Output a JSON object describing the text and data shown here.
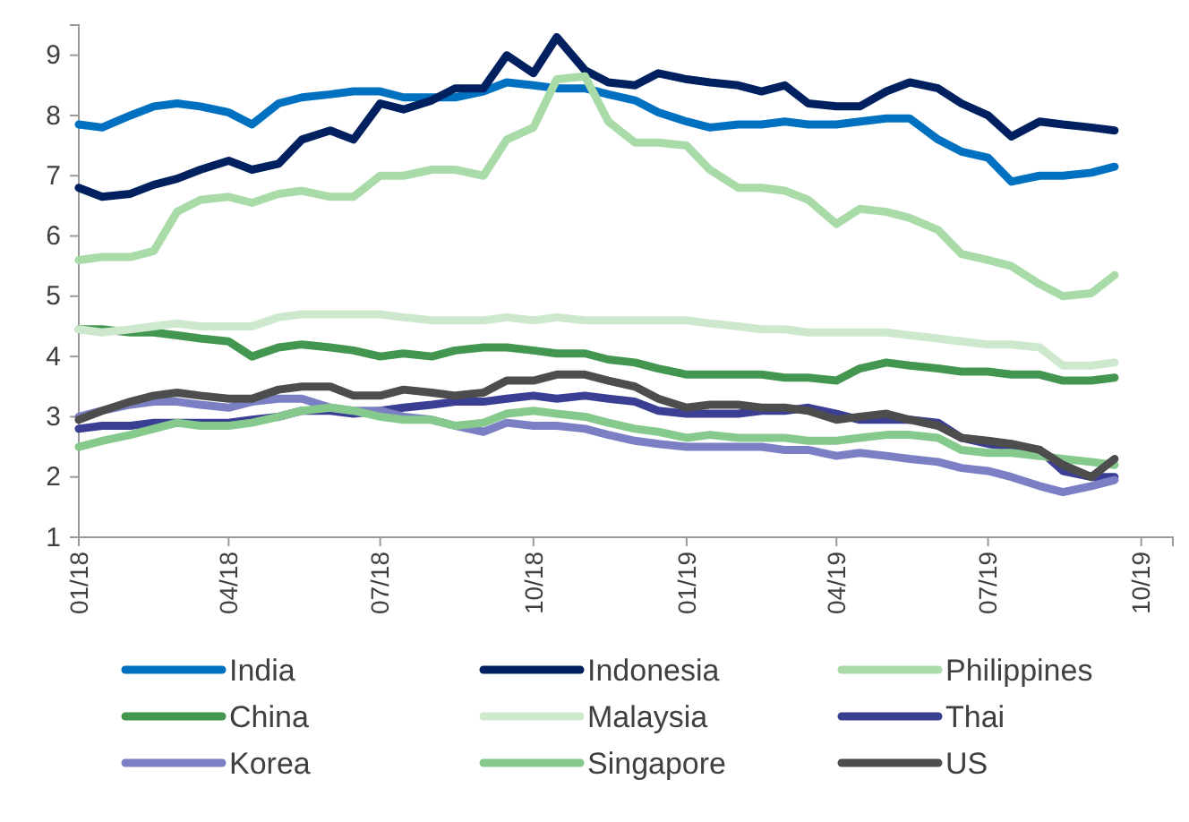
{
  "chart_data": {
    "type": "line",
    "legend": "bottom",
    "grid": false,
    "marker": "none",
    "line_style": "solid",
    "x": [
      "2018-01-01",
      "2018-01-15",
      "2018-02-01",
      "2018-02-15",
      "2018-03-01",
      "2018-03-15",
      "2018-04-01",
      "2018-04-15",
      "2018-05-01",
      "2018-05-15",
      "2018-06-01",
      "2018-06-15",
      "2018-07-01",
      "2018-07-15",
      "2018-08-01",
      "2018-08-15",
      "2018-09-01",
      "2018-09-15",
      "2018-10-01",
      "2018-10-15",
      "2018-11-01",
      "2018-11-15",
      "2018-12-01",
      "2018-12-15",
      "2019-01-01",
      "2019-01-15",
      "2019-02-01",
      "2019-02-15",
      "2019-03-01",
      "2019-03-15",
      "2019-04-01",
      "2019-04-15",
      "2019-05-01",
      "2019-05-15",
      "2019-06-01",
      "2019-06-15",
      "2019-07-01",
      "2019-07-15",
      "2019-08-01",
      "2019-08-15",
      "2019-09-01",
      "2019-09-15"
    ],
    "xlim": [
      "2018-01-01",
      "2019-10-20"
    ],
    "xticks": [
      {
        "value": "2018-01-01",
        "label": "01/18"
      },
      {
        "value": "2018-04-01",
        "label": "04/18"
      },
      {
        "value": "2018-07-01",
        "label": "07/18"
      },
      {
        "value": "2018-10-01",
        "label": "10/18"
      },
      {
        "value": "2019-01-01",
        "label": "01/19"
      },
      {
        "value": "2019-04-01",
        "label": "04/19"
      },
      {
        "value": "2019-07-01",
        "label": "07/19"
      },
      {
        "value": "2019-10-01",
        "label": "10/19"
      }
    ],
    "ylim": [
      1,
      9.5
    ],
    "yticks": [
      1,
      2,
      3,
      4,
      5,
      6,
      7,
      8,
      9
    ],
    "series": [
      {
        "name": "India",
        "color": "#0070c0",
        "values": [
          7.85,
          7.8,
          8.0,
          8.15,
          8.2,
          8.15,
          8.05,
          7.85,
          8.2,
          8.3,
          8.35,
          8.4,
          8.4,
          8.3,
          8.3,
          8.3,
          8.4,
          8.55,
          8.5,
          8.45,
          8.45,
          8.35,
          8.25,
          8.05,
          7.9,
          7.8,
          7.85,
          7.85,
          7.9,
          7.85,
          7.85,
          7.9,
          7.95,
          7.95,
          7.6,
          7.4,
          7.3,
          6.9,
          7.0,
          7.0,
          7.05,
          7.15
        ]
      },
      {
        "name": "Indonesia",
        "color": "#002060",
        "values": [
          6.8,
          6.65,
          6.7,
          6.85,
          6.95,
          7.1,
          7.25,
          7.1,
          7.2,
          7.6,
          7.75,
          7.6,
          8.2,
          8.1,
          8.25,
          8.45,
          8.45,
          9.0,
          8.7,
          9.3,
          8.75,
          8.55,
          8.5,
          8.7,
          8.6,
          8.55,
          8.5,
          8.4,
          8.5,
          8.2,
          8.15,
          8.15,
          8.4,
          8.55,
          8.45,
          8.2,
          8.0,
          7.65,
          7.9,
          7.85,
          7.8,
          7.75
        ]
      },
      {
        "name": "Philippines",
        "color": "#a9dba9",
        "values": [
          5.6,
          5.65,
          5.65,
          5.75,
          6.4,
          6.6,
          6.65,
          6.55,
          6.7,
          6.75,
          6.65,
          6.65,
          7.0,
          7.0,
          7.1,
          7.1,
          7.0,
          7.6,
          7.8,
          8.6,
          8.65,
          7.9,
          7.55,
          7.55,
          7.5,
          7.1,
          6.8,
          6.8,
          6.75,
          6.6,
          6.2,
          6.45,
          6.4,
          6.3,
          6.1,
          5.7,
          5.6,
          5.5,
          5.2,
          5.0,
          5.05,
          5.35
        ]
      },
      {
        "name": "China",
        "color": "#43964f",
        "values": [
          4.45,
          4.45,
          4.4,
          4.4,
          4.35,
          4.3,
          4.25,
          4.0,
          4.15,
          4.2,
          4.15,
          4.1,
          4.0,
          4.05,
          4.0,
          4.1,
          4.15,
          4.15,
          4.1,
          4.05,
          4.05,
          3.95,
          3.9,
          3.8,
          3.7,
          3.7,
          3.7,
          3.7,
          3.65,
          3.65,
          3.6,
          3.8,
          3.9,
          3.85,
          3.8,
          3.75,
          3.75,
          3.7,
          3.7,
          3.6,
          3.6,
          3.65
        ]
      },
      {
        "name": "Malaysia",
        "color": "#cde8cd",
        "values": [
          4.45,
          4.4,
          4.45,
          4.5,
          4.55,
          4.5,
          4.5,
          4.5,
          4.65,
          4.7,
          4.7,
          4.7,
          4.7,
          4.65,
          4.6,
          4.6,
          4.6,
          4.65,
          4.6,
          4.65,
          4.6,
          4.6,
          4.6,
          4.6,
          4.6,
          4.55,
          4.5,
          4.45,
          4.45,
          4.4,
          4.4,
          4.4,
          4.4,
          4.35,
          4.3,
          4.25,
          4.2,
          4.2,
          4.15,
          3.85,
          3.85,
          3.9
        ]
      },
      {
        "name": "Thai",
        "color": "#3b3f94",
        "values": [
          2.8,
          2.85,
          2.85,
          2.9,
          2.9,
          2.9,
          2.9,
          2.95,
          3.0,
          3.1,
          3.1,
          3.05,
          3.1,
          3.15,
          3.2,
          3.25,
          3.25,
          3.3,
          3.35,
          3.3,
          3.35,
          3.3,
          3.25,
          3.1,
          3.05,
          3.05,
          3.05,
          3.1,
          3.1,
          3.15,
          3.05,
          2.95,
          2.95,
          2.95,
          2.9,
          2.65,
          2.55,
          2.5,
          2.45,
          2.1,
          2.0,
          2.0
        ]
      },
      {
        "name": "Korea",
        "color": "#7b7fc4",
        "values": [
          3.0,
          3.1,
          3.2,
          3.25,
          3.25,
          3.2,
          3.15,
          3.25,
          3.3,
          3.3,
          3.15,
          3.1,
          3.1,
          3.0,
          2.95,
          2.85,
          2.75,
          2.9,
          2.85,
          2.85,
          2.8,
          2.7,
          2.6,
          2.55,
          2.5,
          2.5,
          2.5,
          2.5,
          2.45,
          2.45,
          2.35,
          2.4,
          2.35,
          2.3,
          2.25,
          2.15,
          2.1,
          2.0,
          1.85,
          1.75,
          1.85,
          1.95
        ]
      },
      {
        "name": "Singapore",
        "color": "#85c98d",
        "values": [
          2.5,
          2.6,
          2.7,
          2.8,
          2.9,
          2.85,
          2.85,
          2.9,
          3.0,
          3.1,
          3.15,
          3.1,
          3.0,
          2.95,
          2.95,
          2.85,
          2.9,
          3.05,
          3.1,
          3.05,
          3.0,
          2.9,
          2.8,
          2.75,
          2.65,
          2.7,
          2.65,
          2.65,
          2.65,
          2.6,
          2.6,
          2.65,
          2.7,
          2.7,
          2.65,
          2.45,
          2.4,
          2.4,
          2.35,
          2.3,
          2.25,
          2.2
        ]
      },
      {
        "name": "US",
        "color": "#4d4d4d",
        "values": [
          2.95,
          3.1,
          3.25,
          3.35,
          3.4,
          3.35,
          3.3,
          3.3,
          3.45,
          3.5,
          3.5,
          3.35,
          3.35,
          3.45,
          3.4,
          3.35,
          3.4,
          3.6,
          3.6,
          3.7,
          3.7,
          3.6,
          3.5,
          3.3,
          3.15,
          3.2,
          3.2,
          3.15,
          3.15,
          3.1,
          2.95,
          3.0,
          3.05,
          2.95,
          2.85,
          2.65,
          2.6,
          2.55,
          2.45,
          2.2,
          2.0,
          2.3
        ]
      }
    ]
  }
}
